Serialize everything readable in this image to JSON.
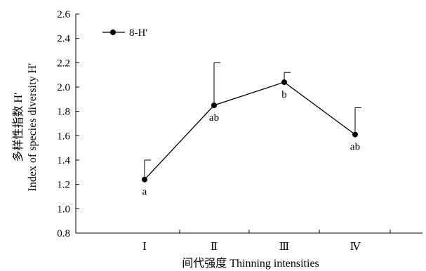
{
  "chart_data": {
    "type": "line",
    "categories": [
      "Ⅰ",
      "Ⅱ",
      "Ⅲ",
      "Ⅳ"
    ],
    "series": [
      {
        "name": "8-H′",
        "values": [
          1.24,
          1.85,
          2.04,
          1.61
        ],
        "error_upper": [
          0.16,
          0.35,
          0.08,
          0.22
        ],
        "labels": [
          "a",
          "ab",
          "b",
          "ab"
        ],
        "marker": "circle",
        "color": "#000000"
      }
    ],
    "xlabel": "间代强度 Thinning intensities",
    "ylabel_line1": "多样性指数 H′",
    "ylabel_line2": "Index of species diversity H′",
    "ylim": [
      0.8,
      2.6
    ],
    "yticks": [
      "0.8",
      "1.0",
      "1.2",
      "1.4",
      "1.6",
      "1.8",
      "2.0",
      "2.2",
      "2.4",
      "2.6"
    ],
    "grid": false,
    "legend_position": "top-left"
  }
}
